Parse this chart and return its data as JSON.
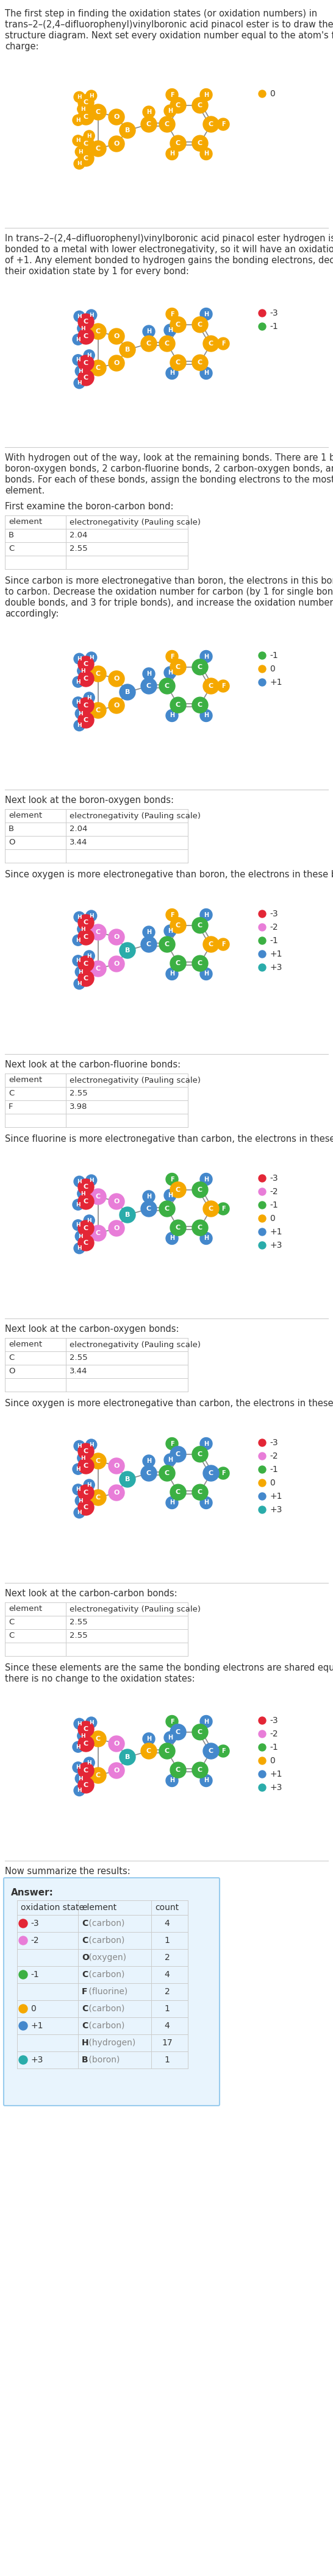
{
  "title_text": "The first step in finding the oxidation states (or oxidation numbers) in\ntrans–2–(2,4–difluorophenyl)vinylboronic acid pinacol ester is to draw the\nstructure diagram. Next set every oxidation number equal to the atom's formal\ncharge:",
  "hydrogen_text": "In trans–2–(2,4–difluorophenyl)vinylboronic acid pinacol ester hydrogen is not\nbonded to a metal with lower electronegativity, so it will have an oxidation state\nof +1. Any element bonded to hydrogen gains the bonding electrons, decreasing\ntheir oxidation state by 1 for every bond:",
  "remaining_bonds_text": "With hydrogen out of the way, look at the remaining bonds. There are 1 boron-carbon bond, 2\nboron-oxygen bonds, 2 carbon-fluorine bonds, 2 carbon-oxygen bonds, and 13 carbon-carbon\nbonds. For each of these bonds, assign the bonding electrons to the most electronegative\nelement.",
  "bc_intro": "First examine the boron-carbon bond:",
  "bc_table": [
    [
      "element",
      "electronegativity (Pauling scale)"
    ],
    [
      "B",
      "2.04"
    ],
    [
      "C",
      "2.55"
    ],
    [
      " ",
      " "
    ]
  ],
  "bc_text": "Since carbon is more electronegative than boron, the electrons in this bond will go\nto carbon. Decrease the oxidation number for carbon (by 1 for single bonds, 2 for\ndouble bonds, and 3 for triple bonds), and increase the oxidation number for boron\naccordingly:",
  "bo_intro": "Next look at the boron-oxygen bonds:",
  "bo_table": [
    [
      "element",
      "electronegativity (Pauling scale)"
    ],
    [
      "B",
      "2.04"
    ],
    [
      "O",
      "3.44"
    ],
    [
      " ",
      " "
    ]
  ],
  "bo_text": "Since oxygen is more electronegative than boron, the electrons in these bonds will go to oxygen:",
  "cf_intro": "Next look at the carbon-fluorine bonds:",
  "cf_table": [
    [
      "element",
      "electronegativity (Pauling scale)"
    ],
    [
      "C",
      "2.55"
    ],
    [
      "F",
      "3.98"
    ],
    [
      " ",
      " "
    ]
  ],
  "cf_text": "Since fluorine is more electronegative than carbon, the electrons in these bonds will go to fluorine:",
  "co_intro": "Next look at the carbon-oxygen bonds:",
  "co_table": [
    [
      "element",
      "electronegativity (Pauling scale)"
    ],
    [
      "C",
      "2.55"
    ],
    [
      "O",
      "3.44"
    ],
    [
      " ",
      " "
    ]
  ],
  "co_text": "Since oxygen is more electronegative than carbon, the electrons in these bonds will go to oxygen:",
  "cc_intro": "Next look at the carbon-carbon bonds:",
  "cc_table": [
    [
      "element",
      "electronegativity (Pauling scale)"
    ],
    [
      "C",
      "2.55"
    ],
    [
      "C",
      "2.55"
    ],
    [
      " ",
      " "
    ]
  ],
  "cc_text": "Since these elements are the same the bonding electrons are shared equally, and\nthere is no change to the oxidation states:",
  "summary_intro": "Now summarize the results:",
  "answer_label": "Answer:",
  "answer_table_headers": [
    "oxidation state",
    "element",
    "count"
  ],
  "answer_rows": [
    [
      "–3",
      "C (carbon)",
      "4",
      "#e32636",
      null
    ],
    [
      "–2",
      "C (carbon)",
      "1",
      "#e87dd8",
      null
    ],
    [
      "",
      "O (oxygen)",
      "2",
      null,
      null
    ],
    [
      "–1",
      "C (carbon)",
      "4",
      "#3cb043",
      null
    ],
    [
      "",
      "F (fluorine)",
      "2",
      null,
      null
    ],
    [
      "0",
      "C (carbon)",
      "1",
      "#f5a800",
      null
    ],
    [
      "+1",
      "C (carbon)",
      "4",
      "#4488cc",
      null
    ],
    [
      "",
      "H (hydrogen)",
      "17",
      null,
      null
    ],
    [
      "+3",
      "B (boron)",
      "1",
      "#2aacaa",
      null
    ]
  ],
  "dot_colors": {
    "-3": "#e32636",
    "-2": "#e87dd8",
    "-1": "#3cb043",
    "0": "#f5a800",
    "+1": "#4488cc",
    "+3": "#2aacaa"
  },
  "bg_color": "#ffffff",
  "text_color": "#333333",
  "node_color_initial": "#f5a800",
  "node_color_h": "#4488cc",
  "node_color_carbon_neg3": "#e32636",
  "node_color_carbon_neg2": "#e87dd8",
  "node_color_carbon_neg1": "#3cb043",
  "node_color_carbon_0": "#f5a800",
  "node_color_carbon_pos1": "#4488cc",
  "node_color_O": "#f5a800",
  "node_color_F": "#f5a800",
  "node_color_B": "#f5a800"
}
